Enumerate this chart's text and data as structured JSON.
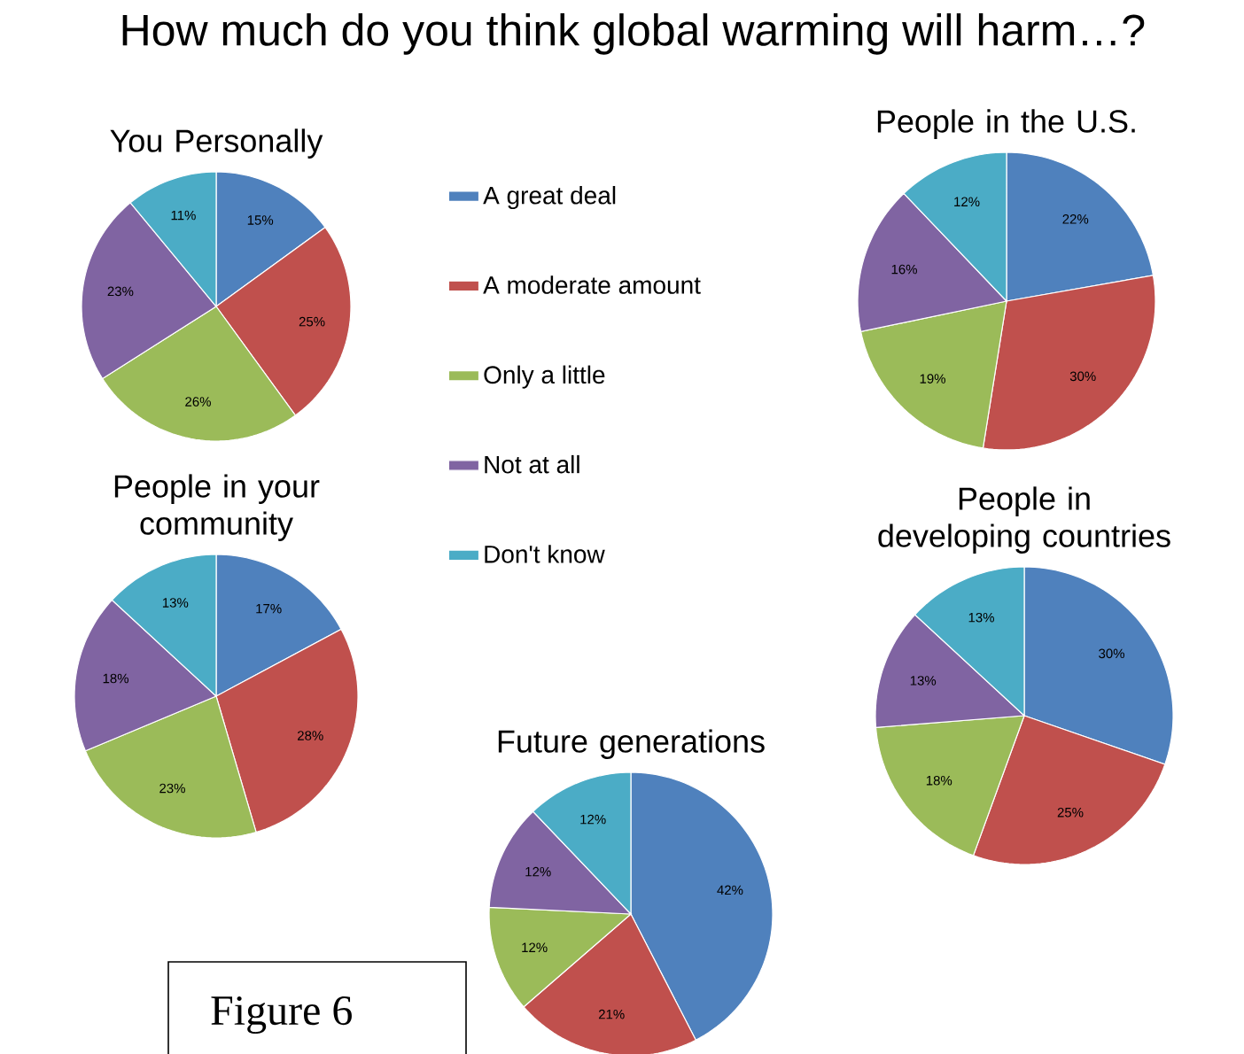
{
  "chart_data": [
    {
      "type": "other",
      "title": "How much do you think global warming will harm…?",
      "annotations": [
        "Figure 6"
      ]
    },
    {
      "type": "pie",
      "title": "You Personally",
      "legend": "right",
      "categories": [
        "A great deal",
        "A moderate amount",
        "Only a little",
        "Not at all",
        "Don't know"
      ],
      "values": [
        15,
        25,
        26,
        23,
        11
      ],
      "value_labels": [
        "15%",
        "25%",
        "26%",
        "23%",
        "11%"
      ],
      "colors": [
        "#4f81bd",
        "#c0504d",
        "#9bbb59",
        "#8064a2",
        "#4bacc6"
      ]
    },
    {
      "type": "pie",
      "title": "People in the U.S.",
      "categories": [
        null,
        null,
        null,
        null,
        null
      ],
      "values": [
        22,
        30,
        19,
        16,
        12
      ],
      "value_labels": [
        "22%",
        "30%",
        "19%",
        "16%",
        "12%"
      ],
      "colors": [
        "#4f81bd",
        "#c0504d",
        "#9bbb59",
        "#8064a2",
        "#4bacc6"
      ]
    },
    {
      "type": "pie",
      "title": "People in your community",
      "categories": [
        null,
        null,
        null,
        null,
        null
      ],
      "values": [
        17,
        28,
        23,
        18,
        13
      ],
      "value_labels": [
        "17%",
        "28%",
        "23%",
        "18%",
        "13%"
      ],
      "colors": [
        "#4f81bd",
        "#c0504d",
        "#9bbb59",
        "#8064a2",
        "#4bacc6"
      ]
    },
    {
      "type": "pie",
      "title": "People in developing countries",
      "categories": [
        null,
        null,
        null,
        null,
        null
      ],
      "values": [
        30,
        25,
        18,
        13,
        13
      ],
      "value_labels": [
        "30%",
        "25%",
        "18%",
        "13%",
        "13%"
      ],
      "colors": [
        "#4f81bd",
        "#c0504d",
        "#9bbb59",
        "#8064a2",
        "#4bacc6"
      ]
    },
    {
      "type": "pie",
      "title": "Future generations",
      "categories": [
        null,
        null,
        null,
        null,
        null
      ],
      "values": [
        42,
        21,
        12,
        12,
        12
      ],
      "value_labels": [
        "42%",
        "21%",
        "12%",
        "12%",
        "12%"
      ],
      "colors": [
        "#4f81bd",
        "#c0504d",
        "#9bbb59",
        "#8064a2",
        "#4bacc6"
      ]
    }
  ]
}
